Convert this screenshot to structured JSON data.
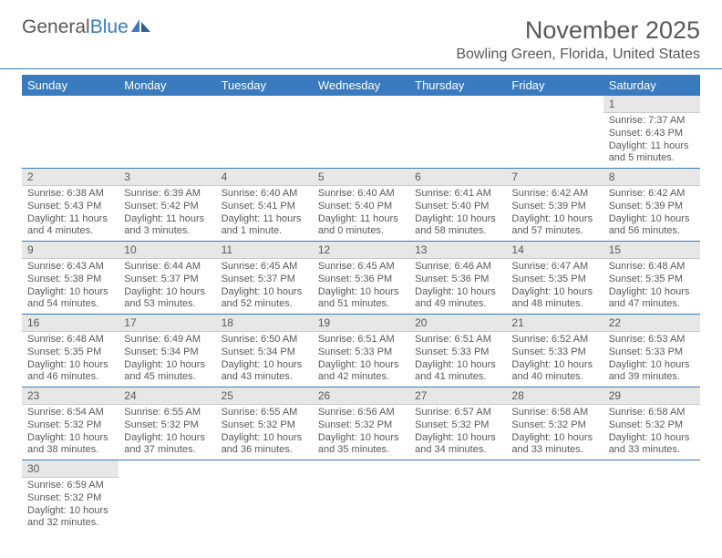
{
  "brand": {
    "part1": "General",
    "part2": "Blue"
  },
  "title": "November 2025",
  "location": "Bowling Green, Florida, United States",
  "colors": {
    "accent": "#3a7bbf",
    "text": "#58595b",
    "daynum_bg": "#e7e7e7",
    "daynum_border": "#c9c9c9",
    "background": "#ffffff"
  },
  "weekdays": [
    "Sunday",
    "Monday",
    "Tuesday",
    "Wednesday",
    "Thursday",
    "Friday",
    "Saturday"
  ],
  "weeks": [
    [
      null,
      null,
      null,
      null,
      null,
      null,
      {
        "n": "1",
        "sunrise": "Sunrise: 7:37 AM",
        "sunset": "Sunset: 6:43 PM",
        "daylight": "Daylight: 11 hours and 5 minutes."
      }
    ],
    [
      {
        "n": "2",
        "sunrise": "Sunrise: 6:38 AM",
        "sunset": "Sunset: 5:43 PM",
        "daylight": "Daylight: 11 hours and 4 minutes."
      },
      {
        "n": "3",
        "sunrise": "Sunrise: 6:39 AM",
        "sunset": "Sunset: 5:42 PM",
        "daylight": "Daylight: 11 hours and 3 minutes."
      },
      {
        "n": "4",
        "sunrise": "Sunrise: 6:40 AM",
        "sunset": "Sunset: 5:41 PM",
        "daylight": "Daylight: 11 hours and 1 minute."
      },
      {
        "n": "5",
        "sunrise": "Sunrise: 6:40 AM",
        "sunset": "Sunset: 5:40 PM",
        "daylight": "Daylight: 11 hours and 0 minutes."
      },
      {
        "n": "6",
        "sunrise": "Sunrise: 6:41 AM",
        "sunset": "Sunset: 5:40 PM",
        "daylight": "Daylight: 10 hours and 58 minutes."
      },
      {
        "n": "7",
        "sunrise": "Sunrise: 6:42 AM",
        "sunset": "Sunset: 5:39 PM",
        "daylight": "Daylight: 10 hours and 57 minutes."
      },
      {
        "n": "8",
        "sunrise": "Sunrise: 6:42 AM",
        "sunset": "Sunset: 5:39 PM",
        "daylight": "Daylight: 10 hours and 56 minutes."
      }
    ],
    [
      {
        "n": "9",
        "sunrise": "Sunrise: 6:43 AM",
        "sunset": "Sunset: 5:38 PM",
        "daylight": "Daylight: 10 hours and 54 minutes."
      },
      {
        "n": "10",
        "sunrise": "Sunrise: 6:44 AM",
        "sunset": "Sunset: 5:37 PM",
        "daylight": "Daylight: 10 hours and 53 minutes."
      },
      {
        "n": "11",
        "sunrise": "Sunrise: 6:45 AM",
        "sunset": "Sunset: 5:37 PM",
        "daylight": "Daylight: 10 hours and 52 minutes."
      },
      {
        "n": "12",
        "sunrise": "Sunrise: 6:45 AM",
        "sunset": "Sunset: 5:36 PM",
        "daylight": "Daylight: 10 hours and 51 minutes."
      },
      {
        "n": "13",
        "sunrise": "Sunrise: 6:46 AM",
        "sunset": "Sunset: 5:36 PM",
        "daylight": "Daylight: 10 hours and 49 minutes."
      },
      {
        "n": "14",
        "sunrise": "Sunrise: 6:47 AM",
        "sunset": "Sunset: 5:35 PM",
        "daylight": "Daylight: 10 hours and 48 minutes."
      },
      {
        "n": "15",
        "sunrise": "Sunrise: 6:48 AM",
        "sunset": "Sunset: 5:35 PM",
        "daylight": "Daylight: 10 hours and 47 minutes."
      }
    ],
    [
      {
        "n": "16",
        "sunrise": "Sunrise: 6:48 AM",
        "sunset": "Sunset: 5:35 PM",
        "daylight": "Daylight: 10 hours and 46 minutes."
      },
      {
        "n": "17",
        "sunrise": "Sunrise: 6:49 AM",
        "sunset": "Sunset: 5:34 PM",
        "daylight": "Daylight: 10 hours and 45 minutes."
      },
      {
        "n": "18",
        "sunrise": "Sunrise: 6:50 AM",
        "sunset": "Sunset: 5:34 PM",
        "daylight": "Daylight: 10 hours and 43 minutes."
      },
      {
        "n": "19",
        "sunrise": "Sunrise: 6:51 AM",
        "sunset": "Sunset: 5:33 PM",
        "daylight": "Daylight: 10 hours and 42 minutes."
      },
      {
        "n": "20",
        "sunrise": "Sunrise: 6:51 AM",
        "sunset": "Sunset: 5:33 PM",
        "daylight": "Daylight: 10 hours and 41 minutes."
      },
      {
        "n": "21",
        "sunrise": "Sunrise: 6:52 AM",
        "sunset": "Sunset: 5:33 PM",
        "daylight": "Daylight: 10 hours and 40 minutes."
      },
      {
        "n": "22",
        "sunrise": "Sunrise: 6:53 AM",
        "sunset": "Sunset: 5:33 PM",
        "daylight": "Daylight: 10 hours and 39 minutes."
      }
    ],
    [
      {
        "n": "23",
        "sunrise": "Sunrise: 6:54 AM",
        "sunset": "Sunset: 5:32 PM",
        "daylight": "Daylight: 10 hours and 38 minutes."
      },
      {
        "n": "24",
        "sunrise": "Sunrise: 6:55 AM",
        "sunset": "Sunset: 5:32 PM",
        "daylight": "Daylight: 10 hours and 37 minutes."
      },
      {
        "n": "25",
        "sunrise": "Sunrise: 6:55 AM",
        "sunset": "Sunset: 5:32 PM",
        "daylight": "Daylight: 10 hours and 36 minutes."
      },
      {
        "n": "26",
        "sunrise": "Sunrise: 6:56 AM",
        "sunset": "Sunset: 5:32 PM",
        "daylight": "Daylight: 10 hours and 35 minutes."
      },
      {
        "n": "27",
        "sunrise": "Sunrise: 6:57 AM",
        "sunset": "Sunset: 5:32 PM",
        "daylight": "Daylight: 10 hours and 34 minutes."
      },
      {
        "n": "28",
        "sunrise": "Sunrise: 6:58 AM",
        "sunset": "Sunset: 5:32 PM",
        "daylight": "Daylight: 10 hours and 33 minutes."
      },
      {
        "n": "29",
        "sunrise": "Sunrise: 6:58 AM",
        "sunset": "Sunset: 5:32 PM",
        "daylight": "Daylight: 10 hours and 33 minutes."
      }
    ],
    [
      {
        "n": "30",
        "sunrise": "Sunrise: 6:59 AM",
        "sunset": "Sunset: 5:32 PM",
        "daylight": "Daylight: 10 hours and 32 minutes."
      },
      null,
      null,
      null,
      null,
      null,
      null
    ]
  ]
}
